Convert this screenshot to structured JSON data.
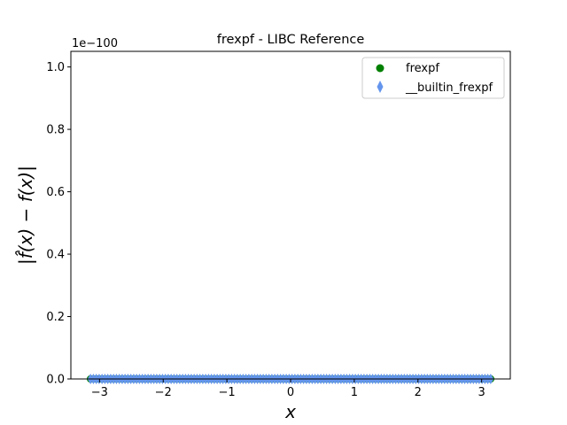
{
  "chart_data": {
    "type": "scatter",
    "title": "frexpf - LIBC Reference",
    "xlabel": "x",
    "ylabel": "|f̂(x) − f(x)|",
    "y_scale_label": "1e−100",
    "xlim": [
      -3.45,
      3.45
    ],
    "ylim": [
      0,
      1.05
    ],
    "x_ticks": [
      -3,
      -2,
      -1,
      0,
      1,
      2,
      3
    ],
    "x_tick_labels": [
      "−3",
      "−2",
      "−1",
      "0",
      "1",
      "2",
      "3"
    ],
    "y_ticks": [
      0.0,
      0.2,
      0.4,
      0.6,
      0.8,
      1.0
    ],
    "y_tick_labels": [
      "0.0",
      "0.2",
      "0.4",
      "0.6",
      "0.8",
      "1.0"
    ],
    "grid": false,
    "legend_position": "top-right",
    "x_range": [
      -3.14159,
      3.14159
    ],
    "series": [
      {
        "name": "frexpf",
        "marker": "circle",
        "color": "#008000",
        "y_value": 0
      },
      {
        "name": "__builtin_frexpf",
        "marker": "thin_diamond",
        "color": "#6495ED",
        "y_value": 0
      }
    ]
  }
}
